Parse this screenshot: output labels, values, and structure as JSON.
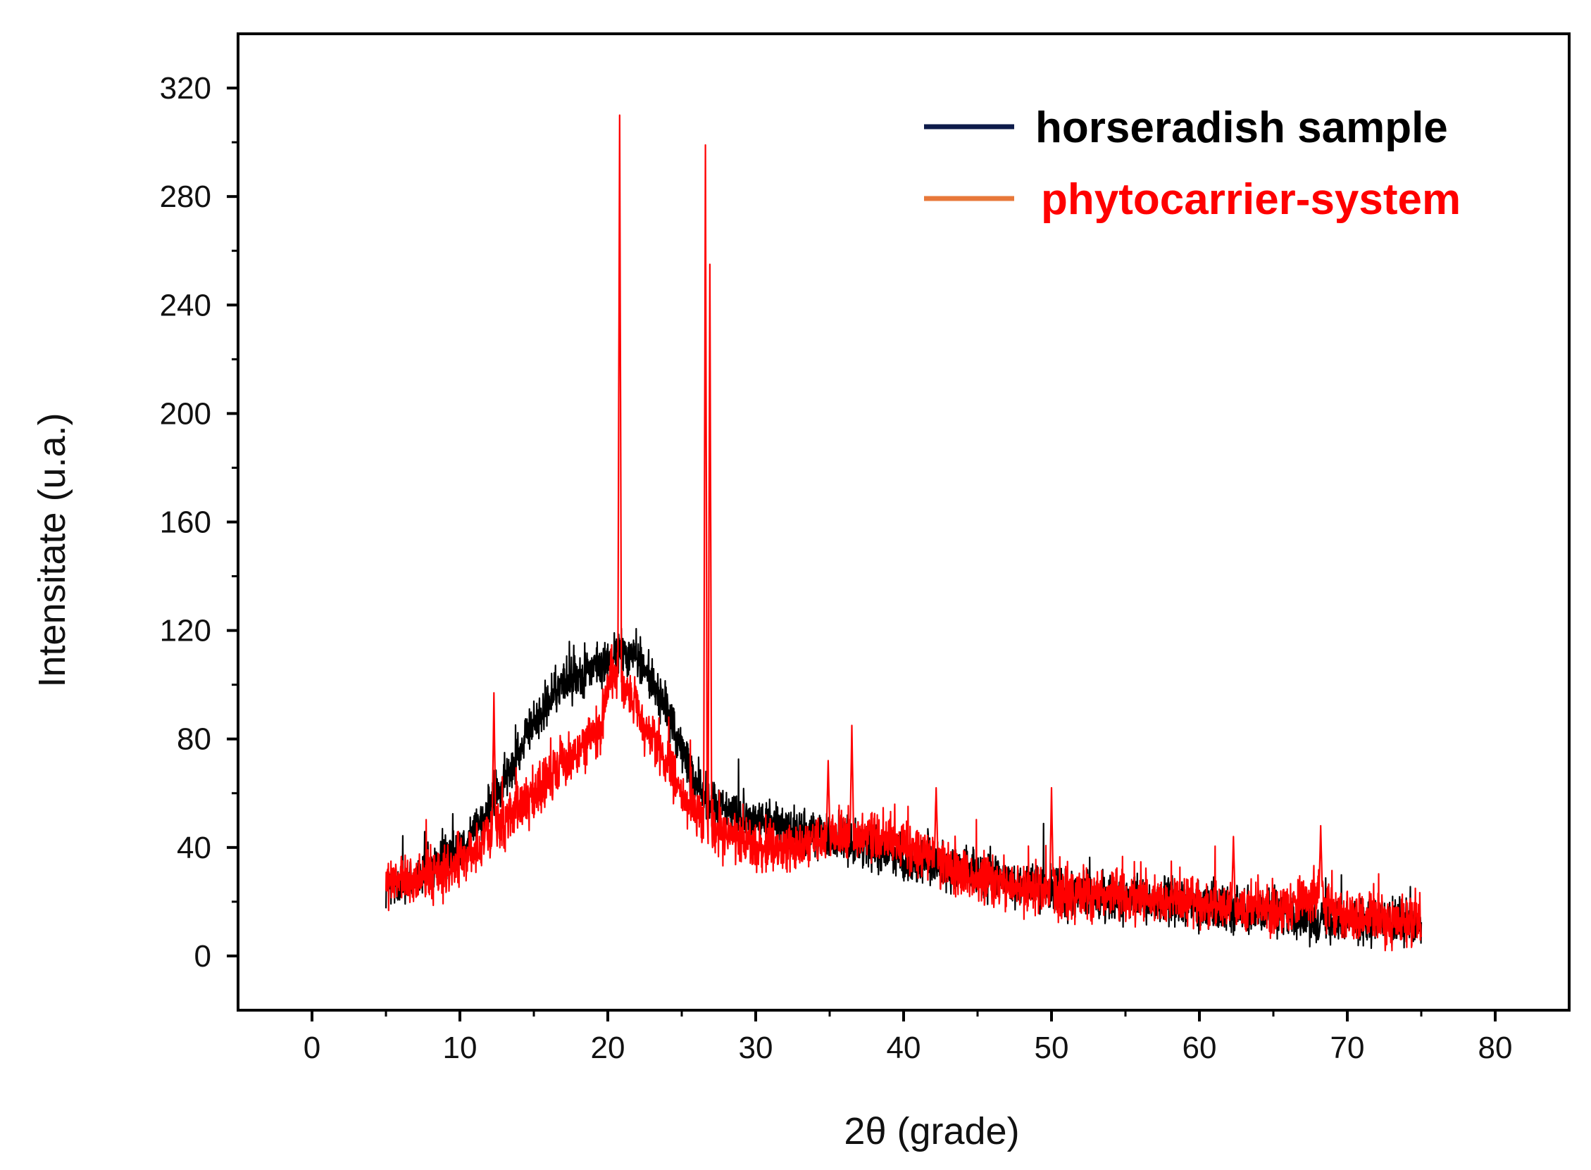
{
  "chart_data": {
    "type": "line",
    "title": "",
    "xlabel": "2θ (grade)",
    "ylabel": "Intensitate (u.a.)",
    "xlim": [
      -5,
      85
    ],
    "ylim": [
      -20,
      340
    ],
    "xticks": [
      0,
      10,
      20,
      30,
      40,
      50,
      60,
      70,
      80
    ],
    "yticks": [
      0,
      40,
      80,
      120,
      160,
      200,
      240,
      280,
      320
    ],
    "xtick_labels": [
      "0",
      "10",
      "20",
      "30",
      "40",
      "50",
      "60",
      "70",
      "80"
    ],
    "ytick_labels": [
      "0",
      "40",
      "80",
      "120",
      "160",
      "200",
      "240",
      "280",
      "320"
    ],
    "grid": false,
    "legend_position": "top-right",
    "series": [
      {
        "name": "horseradish sample",
        "line_color": "#000000",
        "legend_color": "#0d1b4a",
        "label_color": "#000000",
        "noise": 9,
        "x_range": [
          5,
          75
        ],
        "points": [
          [
            5,
            25
          ],
          [
            7,
            29
          ],
          [
            9,
            36
          ],
          [
            11,
            46
          ],
          [
            13,
            64
          ],
          [
            15,
            86
          ],
          [
            17,
            101
          ],
          [
            18.5,
            105
          ],
          [
            20,
            108
          ],
          [
            21,
            112
          ],
          [
            22,
            110
          ],
          [
            23,
            101
          ],
          [
            24,
            90
          ],
          [
            25,
            76
          ],
          [
            26,
            63
          ],
          [
            27,
            56
          ],
          [
            30,
            50
          ],
          [
            33,
            46
          ],
          [
            35,
            44
          ],
          [
            38,
            40
          ],
          [
            40,
            36
          ],
          [
            45,
            30
          ],
          [
            50,
            24
          ],
          [
            55,
            21
          ],
          [
            60,
            19
          ],
          [
            65,
            16
          ],
          [
            70,
            13
          ],
          [
            75,
            12
          ]
        ],
        "peaks": []
      },
      {
        "name": "phytocarrier-system",
        "line_color": "#ff0000",
        "legend_color": "#e8783a",
        "label_color": "#ff0000",
        "noise": 10,
        "x_range": [
          5,
          75
        ],
        "points": [
          [
            5,
            27
          ],
          [
            7,
            28
          ],
          [
            9,
            31
          ],
          [
            11,
            39
          ],
          [
            13,
            50
          ],
          [
            15,
            60
          ],
          [
            17,
            71
          ],
          [
            18.5,
            78
          ],
          [
            19.5,
            85
          ],
          [
            20.2,
            104
          ],
          [
            21,
            100
          ],
          [
            22,
            90
          ],
          [
            23,
            81
          ],
          [
            24,
            72
          ],
          [
            25,
            60
          ],
          [
            26,
            52
          ],
          [
            27,
            47
          ],
          [
            30,
            40
          ],
          [
            33,
            40
          ],
          [
            35,
            44
          ],
          [
            37,
            44
          ],
          [
            39,
            43
          ],
          [
            42,
            36
          ],
          [
            45,
            28
          ],
          [
            50,
            23
          ],
          [
            55,
            22
          ],
          [
            60,
            19
          ],
          [
            65,
            17
          ],
          [
            68,
            22
          ],
          [
            70,
            14
          ],
          [
            75,
            13
          ]
        ],
        "peaks": [
          [
            12.3,
            97
          ],
          [
            20.8,
            310
          ],
          [
            26.6,
            299
          ],
          [
            26.9,
            255
          ],
          [
            34.9,
            72
          ],
          [
            36.5,
            85
          ],
          [
            42.2,
            62
          ],
          [
            50.0,
            62
          ],
          [
            62.3,
            44
          ],
          [
            68.2,
            48
          ]
        ]
      }
    ]
  }
}
